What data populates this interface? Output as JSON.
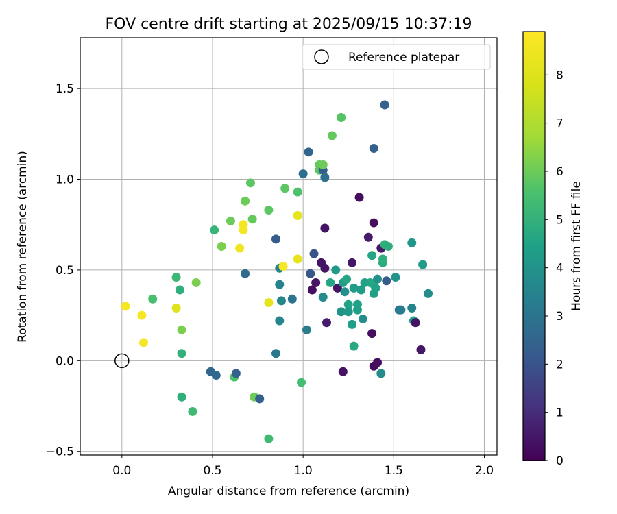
{
  "chart_data": {
    "type": "scatter",
    "title": "FOV centre drift starting at 2025/09/15 10:37:19",
    "xlabel": "Angular distance from reference (arcmin)",
    "ylabel": "Rotation from reference (arcmin)",
    "xlim": [
      -0.23,
      2.07
    ],
    "ylim": [
      -0.52,
      1.78
    ],
    "xticks": [
      0.0,
      0.5,
      1.0,
      1.5,
      2.0
    ],
    "yticks": [
      -0.5,
      0.0,
      0.5,
      1.0,
      1.5
    ],
    "xtick_labels": [
      "0.0",
      "0.5",
      "1.0",
      "1.5",
      "2.0"
    ],
    "ytick_labels": [
      "−0.5",
      "0.0",
      "0.5",
      "1.0",
      "1.5"
    ],
    "grid": true,
    "legend": {
      "position": "top-right",
      "label": "Reference platepar"
    },
    "reference_point": {
      "x": 0.0,
      "y": 0.0
    },
    "colorbar": {
      "label": "Hours from first FF file",
      "colormap": "viridis",
      "min": 0,
      "max": 8.9,
      "ticks": [
        0,
        1,
        2,
        3,
        4,
        5,
        6,
        7,
        8
      ],
      "tick_labels": [
        "0",
        "1",
        "2",
        "3",
        "4",
        "5",
        "6",
        "7",
        "8"
      ]
    },
    "points": [
      {
        "x": 0.02,
        "y": 0.3,
        "h": 8.7
      },
      {
        "x": 0.11,
        "y": 0.25,
        "h": 8.7
      },
      {
        "x": 0.12,
        "y": 0.1,
        "h": 8.6
      },
      {
        "x": 0.17,
        "y": 0.34,
        "h": 5.5
      },
      {
        "x": 0.3,
        "y": 0.29,
        "h": 8.0
      },
      {
        "x": 0.3,
        "y": 0.46,
        "h": 5.2
      },
      {
        "x": 0.32,
        "y": 0.39,
        "h": 4.9
      },
      {
        "x": 0.33,
        "y": 0.17,
        "h": 6.2
      },
      {
        "x": 0.33,
        "y": 0.04,
        "h": 5.0
      },
      {
        "x": 0.33,
        "y": -0.2,
        "h": 4.9
      },
      {
        "x": 0.39,
        "y": -0.28,
        "h": 5.3
      },
      {
        "x": 0.41,
        "y": 0.43,
        "h": 6.2
      },
      {
        "x": 0.49,
        "y": -0.06,
        "h": 2.5
      },
      {
        "x": 0.51,
        "y": 0.72,
        "h": 5.1
      },
      {
        "x": 0.52,
        "y": -0.08,
        "h": 2.6
      },
      {
        "x": 0.55,
        "y": 0.63,
        "h": 6.2
      },
      {
        "x": 0.6,
        "y": 0.77,
        "h": 6.0
      },
      {
        "x": 0.62,
        "y": -0.09,
        "h": 5.6
      },
      {
        "x": 0.63,
        "y": -0.07,
        "h": 2.4
      },
      {
        "x": 0.65,
        "y": 0.62,
        "h": 8.5
      },
      {
        "x": 0.67,
        "y": 0.75,
        "h": 8.6
      },
      {
        "x": 0.67,
        "y": 0.72,
        "h": 8.6
      },
      {
        "x": 0.68,
        "y": 0.48,
        "h": 2.7
      },
      {
        "x": 0.68,
        "y": 0.88,
        "h": 6.0
      },
      {
        "x": 0.71,
        "y": 0.98,
        "h": 5.8
      },
      {
        "x": 0.72,
        "y": 0.78,
        "h": 5.9
      },
      {
        "x": 0.73,
        "y": -0.2,
        "h": 6.0
      },
      {
        "x": 0.76,
        "y": -0.21,
        "h": 2.4
      },
      {
        "x": 0.81,
        "y": 0.83,
        "h": 5.8
      },
      {
        "x": 0.81,
        "y": 0.32,
        "h": 8.2
      },
      {
        "x": 0.81,
        "y": -0.43,
        "h": 5.3
      },
      {
        "x": 0.85,
        "y": 0.67,
        "h": 2.2
      },
      {
        "x": 0.85,
        "y": 0.04,
        "h": 3.1
      },
      {
        "x": 0.87,
        "y": 0.51,
        "h": 3.4
      },
      {
        "x": 0.87,
        "y": 0.42,
        "h": 3.4
      },
      {
        "x": 0.87,
        "y": 0.22,
        "h": 3.5
      },
      {
        "x": 0.88,
        "y": 0.33,
        "h": 3.6
      },
      {
        "x": 0.89,
        "y": 0.52,
        "h": 8.7
      },
      {
        "x": 0.9,
        "y": 0.95,
        "h": 5.8
      },
      {
        "x": 0.94,
        "y": 0.34,
        "h": 3.0
      },
      {
        "x": 0.97,
        "y": 0.93,
        "h": 5.6
      },
      {
        "x": 0.97,
        "y": 0.8,
        "h": 8.2
      },
      {
        "x": 0.97,
        "y": 0.56,
        "h": 8.2
      },
      {
        "x": 0.99,
        "y": -0.12,
        "h": 5.4
      },
      {
        "x": 1.0,
        "y": 1.03,
        "h": 2.8
      },
      {
        "x": 1.02,
        "y": 0.17,
        "h": 3.3
      },
      {
        "x": 1.03,
        "y": 1.15,
        "h": 2.5
      },
      {
        "x": 1.04,
        "y": 0.48,
        "h": 2.1
      },
      {
        "x": 1.05,
        "y": 0.39,
        "h": 0.3
      },
      {
        "x": 1.06,
        "y": 0.59,
        "h": 2.0
      },
      {
        "x": 1.07,
        "y": 0.43,
        "h": 0.5
      },
      {
        "x": 1.09,
        "y": 1.08,
        "h": 5.9
      },
      {
        "x": 1.09,
        "y": 1.05,
        "h": 5.8
      },
      {
        "x": 1.1,
        "y": 0.54,
        "h": 0.4
      },
      {
        "x": 1.11,
        "y": 0.35,
        "h": 3.8
      },
      {
        "x": 1.11,
        "y": 1.05,
        "h": 2.2
      },
      {
        "x": 1.11,
        "y": 1.08,
        "h": 6.0
      },
      {
        "x": 1.12,
        "y": 1.01,
        "h": 2.8
      },
      {
        "x": 1.12,
        "y": 0.73,
        "h": 0.4
      },
      {
        "x": 1.12,
        "y": 0.51,
        "h": 0.4
      },
      {
        "x": 1.13,
        "y": 0.21,
        "h": 0.6
      },
      {
        "x": 1.15,
        "y": 0.43,
        "h": 4.6
      },
      {
        "x": 1.16,
        "y": 1.24,
        "h": 5.9
      },
      {
        "x": 1.18,
        "y": 0.5,
        "h": 4.2
      },
      {
        "x": 1.19,
        "y": 0.4,
        "h": 0.4
      },
      {
        "x": 1.21,
        "y": 1.34,
        "h": 5.7
      },
      {
        "x": 1.21,
        "y": 0.27,
        "h": 4.0
      },
      {
        "x": 1.22,
        "y": -0.06,
        "h": 0.4
      },
      {
        "x": 1.22,
        "y": 0.43,
        "h": 4.3
      },
      {
        "x": 1.23,
        "y": 0.38,
        "h": 3.9
      },
      {
        "x": 1.24,
        "y": 0.45,
        "h": 4.6
      },
      {
        "x": 1.25,
        "y": 0.31,
        "h": 4.5
      },
      {
        "x": 1.25,
        "y": 0.27,
        "h": 4.2
      },
      {
        "x": 1.27,
        "y": 0.54,
        "h": 0.5
      },
      {
        "x": 1.27,
        "y": 0.2,
        "h": 4.4
      },
      {
        "x": 1.28,
        "y": 0.4,
        "h": 4.3
      },
      {
        "x": 1.28,
        "y": 0.08,
        "h": 4.7
      },
      {
        "x": 1.3,
        "y": 0.31,
        "h": 4.5
      },
      {
        "x": 1.3,
        "y": 0.28,
        "h": 4.4
      },
      {
        "x": 1.31,
        "y": 0.9,
        "h": 0.3
      },
      {
        "x": 1.32,
        "y": 0.39,
        "h": 4.3
      },
      {
        "x": 1.33,
        "y": 0.23,
        "h": 3.8
      },
      {
        "x": 1.34,
        "y": 0.43,
        "h": 4.5
      },
      {
        "x": 1.36,
        "y": 0.68,
        "h": 0.6
      },
      {
        "x": 1.37,
        "y": 0.43,
        "h": 4.6
      },
      {
        "x": 1.38,
        "y": 0.15,
        "h": 0.3
      },
      {
        "x": 1.38,
        "y": 0.58,
        "h": 4.6
      },
      {
        "x": 1.39,
        "y": 0.42,
        "h": 4.7
      },
      {
        "x": 1.39,
        "y": 0.37,
        "h": 4.5
      },
      {
        "x": 1.39,
        "y": 1.17,
        "h": 2.4
      },
      {
        "x": 1.39,
        "y": 0.76,
        "h": 0.3
      },
      {
        "x": 1.39,
        "y": -0.03,
        "h": 0.2
      },
      {
        "x": 1.4,
        "y": 0.4,
        "h": 4.5
      },
      {
        "x": 1.41,
        "y": -0.01,
        "h": 0.3
      },
      {
        "x": 1.41,
        "y": 0.45,
        "h": 4.0
      },
      {
        "x": 1.43,
        "y": 0.62,
        "h": 0.5
      },
      {
        "x": 1.43,
        "y": -0.07,
        "h": 3.8
      },
      {
        "x": 1.44,
        "y": 0.54,
        "h": 4.8
      },
      {
        "x": 1.44,
        "y": 0.56,
        "h": 4.9
      },
      {
        "x": 1.45,
        "y": 1.41,
        "h": 2.4
      },
      {
        "x": 1.45,
        "y": 0.64,
        "h": 4.9
      },
      {
        "x": 1.46,
        "y": 0.44,
        "h": 2.2
      },
      {
        "x": 1.47,
        "y": 0.63,
        "h": 4.8
      },
      {
        "x": 1.51,
        "y": 0.46,
        "h": 4.0
      },
      {
        "x": 1.53,
        "y": 0.28,
        "h": 3.0
      },
      {
        "x": 1.54,
        "y": 0.28,
        "h": 3.2
      },
      {
        "x": 1.6,
        "y": 0.29,
        "h": 3.5
      },
      {
        "x": 1.6,
        "y": 0.65,
        "h": 4.1
      },
      {
        "x": 1.61,
        "y": 0.22,
        "h": 4.4
      },
      {
        "x": 1.62,
        "y": 0.21,
        "h": 0.4
      },
      {
        "x": 1.65,
        "y": 0.06,
        "h": 0.5
      },
      {
        "x": 1.66,
        "y": 0.53,
        "h": 4.3
      },
      {
        "x": 1.69,
        "y": 0.37,
        "h": 3.8
      }
    ]
  }
}
